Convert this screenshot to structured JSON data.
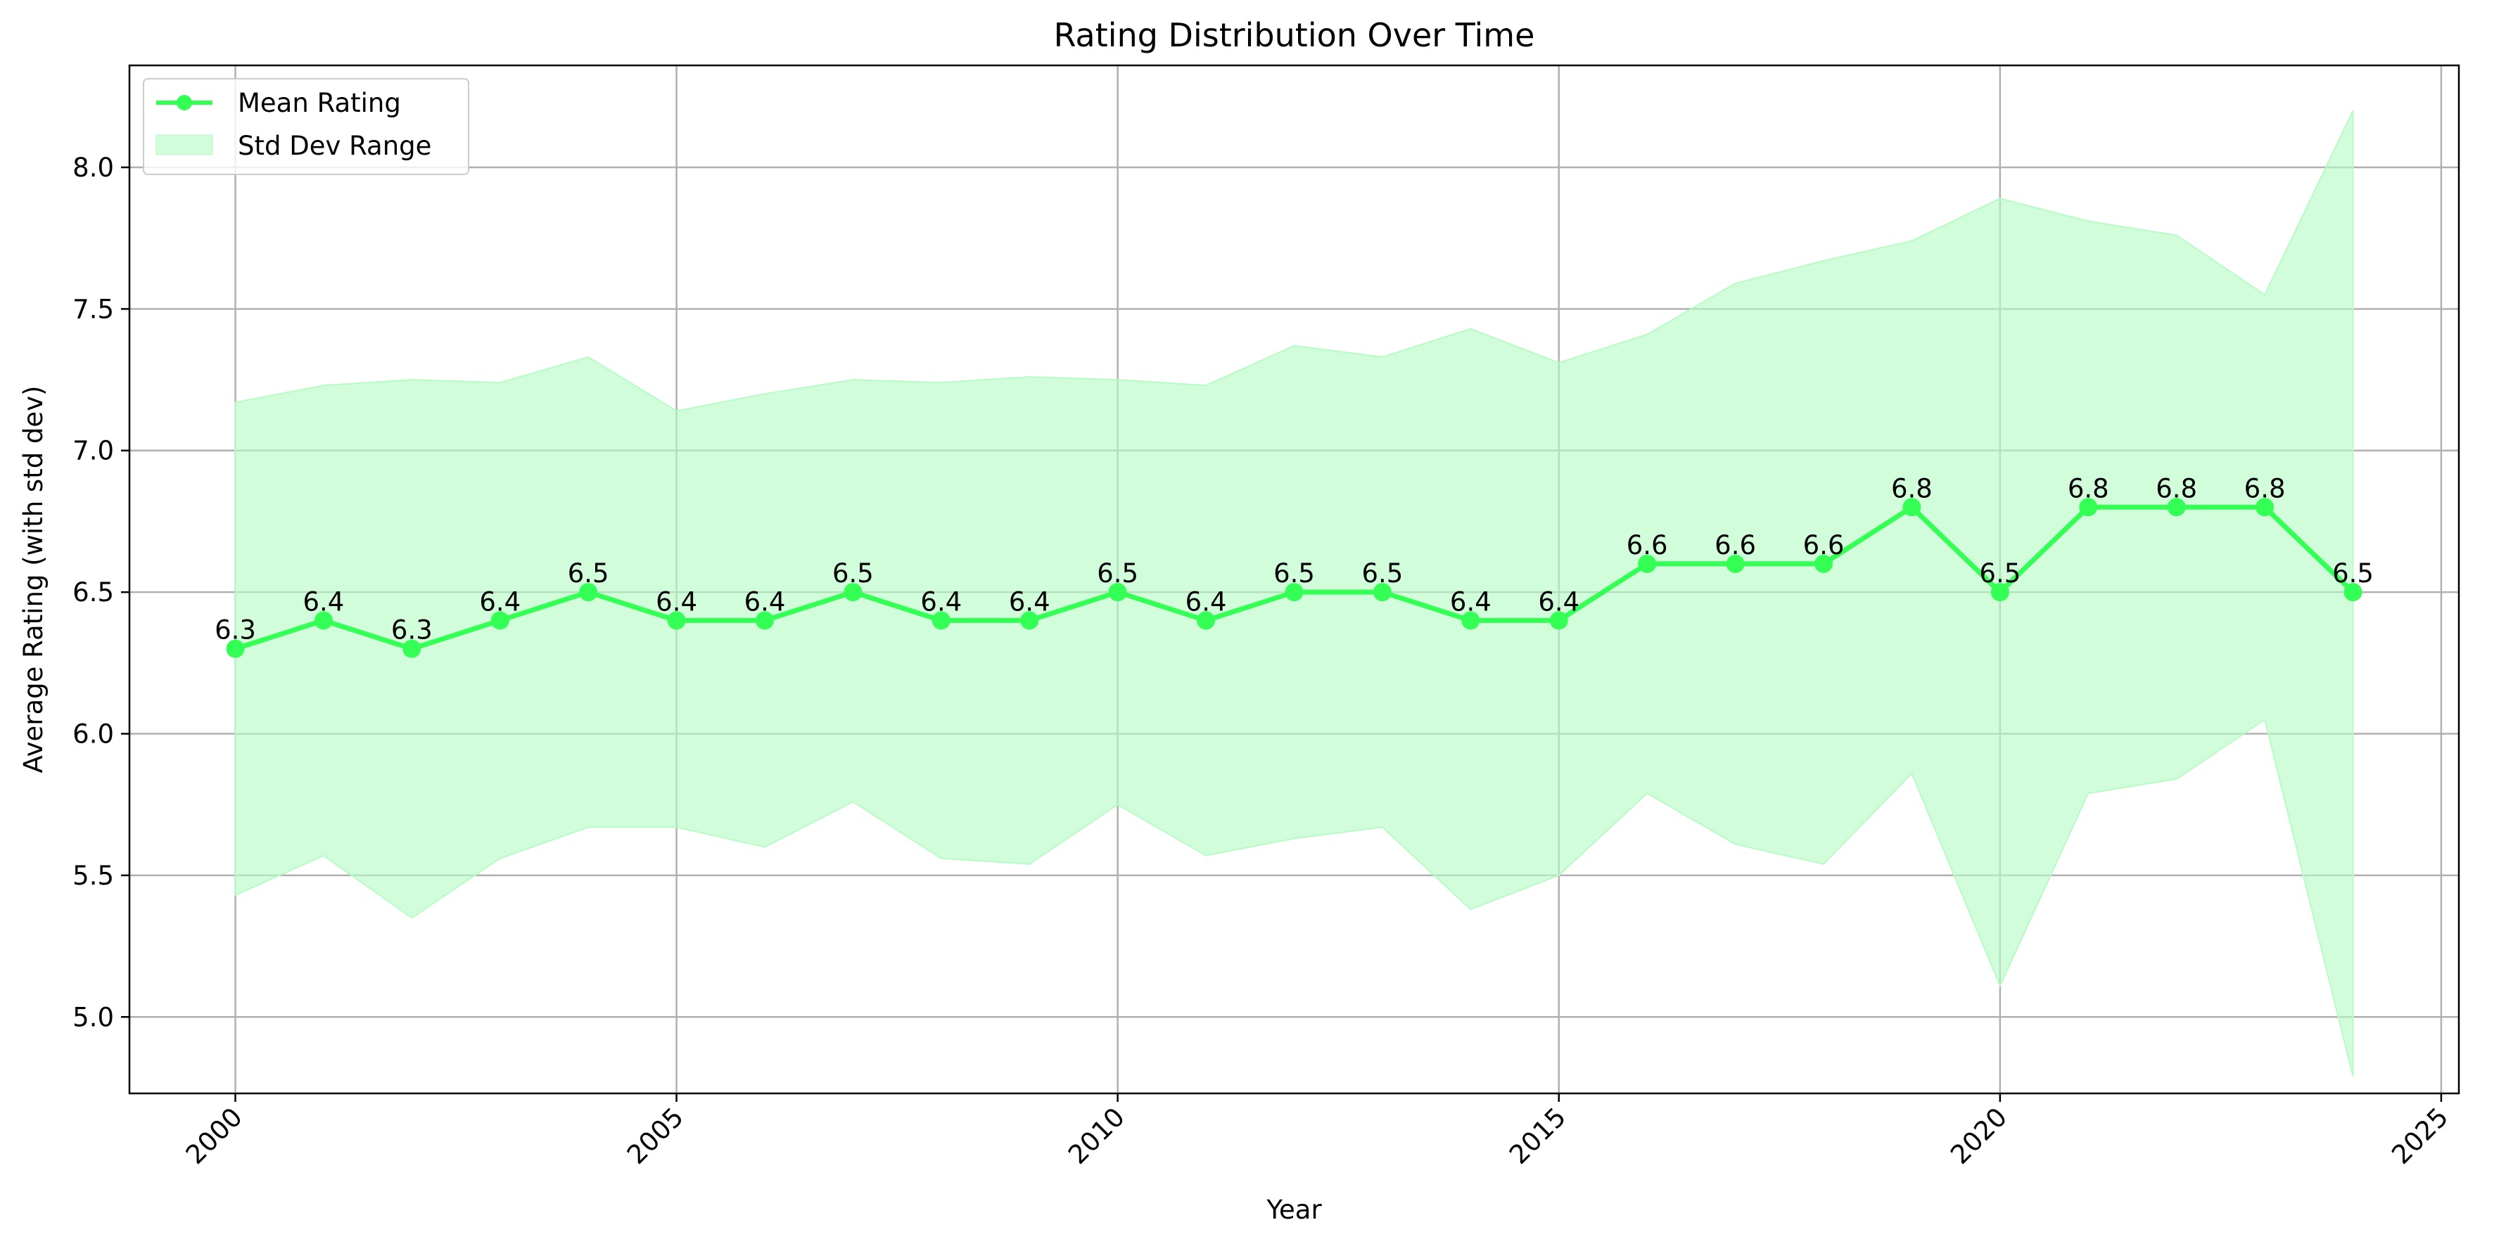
{
  "chart_data": {
    "type": "line",
    "title": "Rating Distribution Over Time",
    "xlabel": "Year",
    "ylabel": "Average Rating (with std dev)",
    "xlim": [
      1998.8,
      2025.2
    ],
    "ylim": [
      4.73,
      8.36
    ],
    "xticks": [
      2000,
      2005,
      2010,
      2015,
      2020,
      2025
    ],
    "xtick_labels": [
      "2000",
      "2005",
      "2010",
      "2015",
      "2020",
      "2025"
    ],
    "xtick_rotation_deg": 45,
    "yticks": [
      5.0,
      5.5,
      6.0,
      6.5,
      7.0,
      7.5,
      8.0
    ],
    "ytick_labels": [
      "5.0",
      "5.5",
      "6.0",
      "6.5",
      "7.0",
      "7.5",
      "8.0"
    ],
    "grid": true,
    "legend_position": "upper-left",
    "legend": [
      {
        "label": "Mean Rating",
        "kind": "line-marker"
      },
      {
        "label": "Std Dev Range",
        "kind": "band"
      }
    ],
    "x": [
      2000,
      2001,
      2002,
      2003,
      2004,
      2005,
      2006,
      2007,
      2008,
      2009,
      2010,
      2011,
      2012,
      2013,
      2014,
      2015,
      2016,
      2017,
      2018,
      2019,
      2020,
      2021,
      2022,
      2023,
      2024
    ],
    "series": [
      {
        "name": "Mean Rating",
        "color": "#33ff55",
        "values": [
          6.3,
          6.4,
          6.3,
          6.4,
          6.5,
          6.4,
          6.4,
          6.5,
          6.4,
          6.4,
          6.5,
          6.4,
          6.5,
          6.5,
          6.4,
          6.4,
          6.6,
          6.6,
          6.6,
          6.8,
          6.5,
          6.8,
          6.8,
          6.8,
          6.5
        ],
        "labels": [
          "6.3",
          "6.4",
          "6.3",
          "6.4",
          "6.5",
          "6.4",
          "6.4",
          "6.5",
          "6.4",
          "6.4",
          "6.5",
          "6.4",
          "6.5",
          "6.5",
          "6.4",
          "6.4",
          "6.6",
          "6.6",
          "6.6",
          "6.8",
          "6.5",
          "6.8",
          "6.8",
          "6.8",
          "6.5"
        ]
      }
    ],
    "band": {
      "name": "Std Dev Range",
      "color": "#b7fbc5",
      "upper": [
        7.17,
        7.23,
        7.25,
        7.24,
        7.33,
        7.14,
        7.2,
        7.25,
        7.24,
        7.26,
        7.25,
        7.23,
        7.37,
        7.33,
        7.43,
        7.31,
        7.41,
        7.59,
        7.67,
        7.74,
        7.89,
        7.81,
        7.76,
        7.55,
        8.2
      ],
      "lower": [
        5.43,
        5.57,
        5.35,
        5.56,
        5.67,
        5.67,
        5.6,
        5.76,
        5.56,
        5.54,
        5.75,
        5.57,
        5.63,
        5.67,
        5.38,
        5.5,
        5.79,
        5.61,
        5.54,
        5.86,
        5.11,
        5.79,
        5.84,
        6.05,
        4.79
      ]
    },
    "colors": {
      "line": "#33ff55",
      "band_fill": "#b7fbc5",
      "grid": "#b0b0b0",
      "axes": "#000000"
    }
  }
}
